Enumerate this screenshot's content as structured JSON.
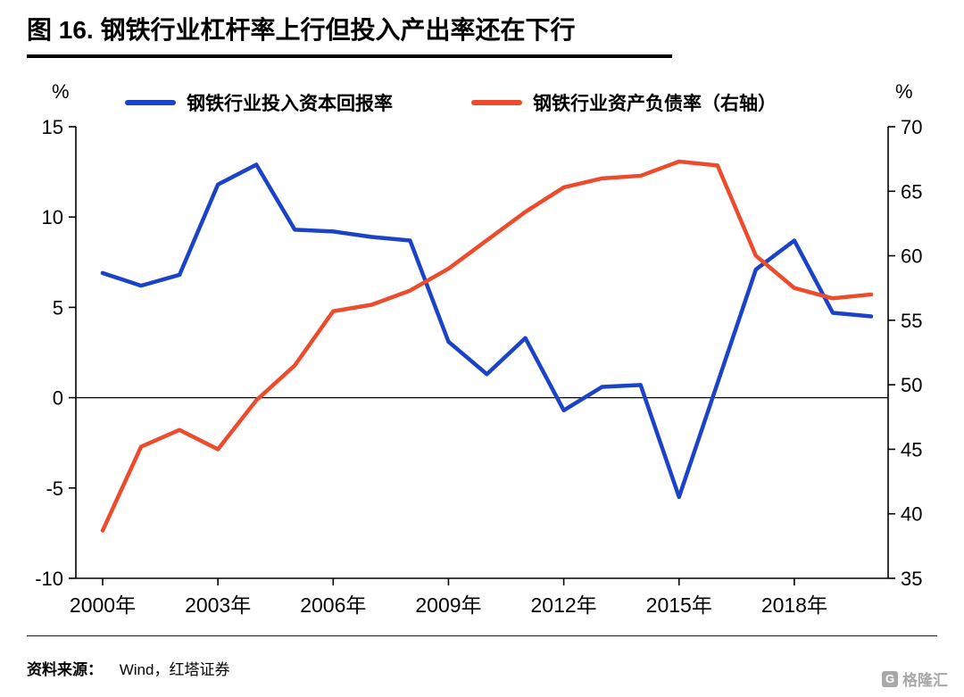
{
  "title": "图 16. 钢铁行业杠杆率上行但投入产出率还在下行",
  "legend": {
    "series1": "钢铁行业投入资本回报率",
    "series2": "钢铁行业资产负债率（右轴）"
  },
  "footer": {
    "source_label": "资料来源：",
    "source_text": "Wind，红塔证券"
  },
  "watermark": {
    "icon_letter": "G",
    "text": "格隆汇"
  },
  "colors": {
    "series_blue": "#1a43c8",
    "series_red": "#ec4c2c",
    "axis": "#000000",
    "watermark_gray": "#a9a9a9"
  },
  "chart_data": {
    "type": "line",
    "title": "图 16. 钢铁行业杠杆率上行但投入产出率还在下行",
    "x": [
      2000,
      2001,
      2002,
      2003,
      2004,
      2005,
      2006,
      2007,
      2008,
      2009,
      2010,
      2011,
      2012,
      2013,
      2014,
      2015,
      2016,
      2017,
      2018,
      2019,
      2020
    ],
    "x_tick_labels": [
      "2000年",
      "2003年",
      "2006年",
      "2009年",
      "2012年",
      "2015年",
      "2018年"
    ],
    "x_tick_indices": [
      0,
      3,
      6,
      9,
      12,
      15,
      18
    ],
    "left_axis": {
      "label": "%",
      "min": -10,
      "max": 15,
      "ticks": [
        15,
        10,
        5,
        0,
        -5,
        -10
      ]
    },
    "right_axis": {
      "label": "%",
      "min": 35,
      "max": 70,
      "ticks": [
        70,
        65,
        60,
        55,
        50,
        45,
        40,
        35
      ]
    },
    "zero_line": true,
    "grid": false,
    "legend_position": "top",
    "series": [
      {
        "name": "钢铁行业投入资本回报率",
        "axis": "left",
        "color": "#1a43c8",
        "values": [
          6.9,
          6.2,
          6.8,
          11.8,
          12.9,
          9.3,
          9.2,
          8.9,
          8.7,
          3.1,
          1.3,
          3.3,
          -0.7,
          0.6,
          0.7,
          -5.5,
          0.8,
          7.1,
          8.7,
          4.7,
          4.5
        ]
      },
      {
        "name": "钢铁行业资产负债率（右轴）",
        "axis": "right",
        "color": "#ec4c2c",
        "values": [
          38.7,
          45.2,
          46.5,
          45.0,
          48.8,
          51.5,
          55.7,
          56.2,
          57.3,
          59.0,
          61.2,
          63.4,
          65.3,
          66.0,
          66.2,
          67.3,
          67.0,
          60.0,
          57.5,
          56.7,
          57.0
        ]
      }
    ]
  }
}
